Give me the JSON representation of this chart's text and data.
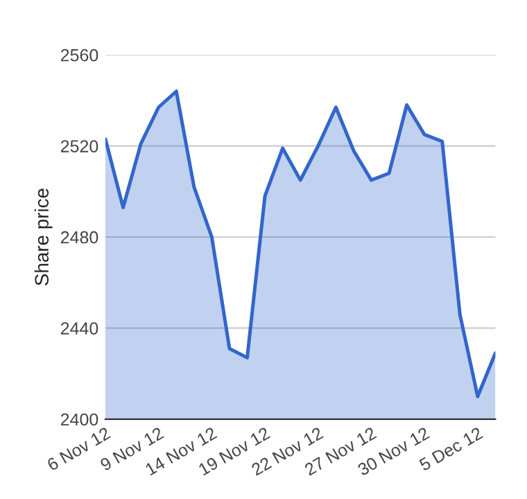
{
  "chart_data": {
    "type": "area",
    "ylabel": "Share price",
    "categories": [
      "6 Nov 12",
      null,
      null,
      "9 Nov 12",
      null,
      null,
      "14 Nov 12",
      null,
      null,
      "19 Nov 12",
      null,
      null,
      "22 Nov 12",
      null,
      null,
      "27 Nov 12",
      null,
      null,
      "30 Nov 12",
      null,
      null,
      "5 Dec 12",
      null
    ],
    "series": [
      {
        "color": "#3366cc",
        "values": [
          2523,
          2493,
          2521,
          2537,
          2544,
          2502,
          2480,
          2431,
          2427,
          2498,
          2519,
          2505,
          2520,
          2537,
          2518,
          2505,
          2508,
          2538,
          2525,
          2522,
          2446,
          2410,
          2429
        ]
      }
    ],
    "ylim": [
      2400,
      2560
    ],
    "yticks": [
      2400,
      2440,
      2480,
      2520,
      2560
    ],
    "grid": "y",
    "legend": false
  }
}
